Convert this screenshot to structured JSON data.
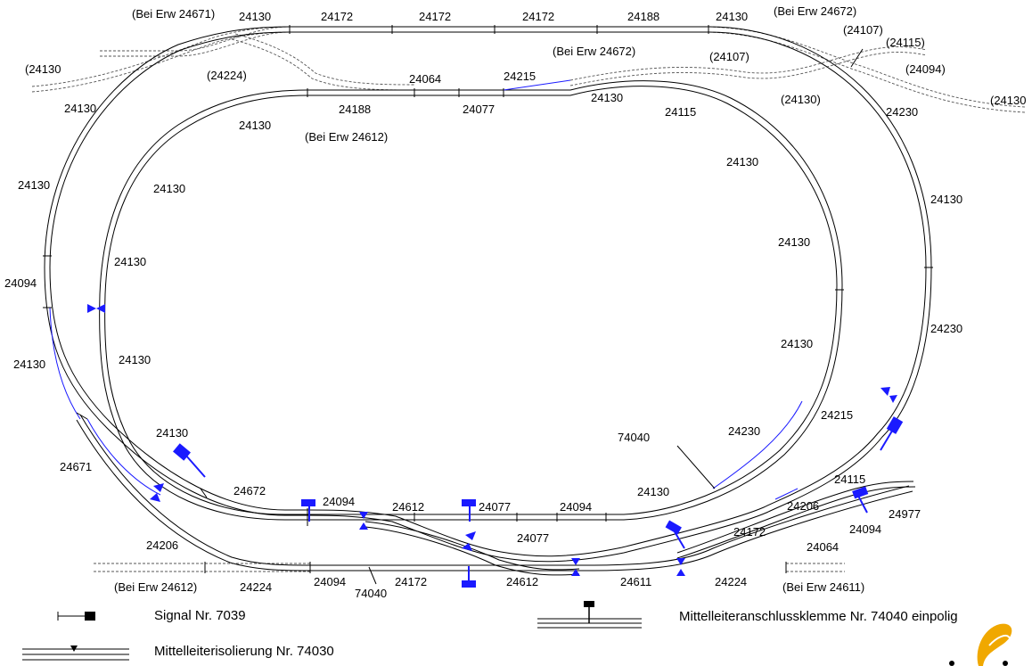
{
  "labels": {
    "bei_erw_24671": "(Bei Erw 24671)",
    "bei_erw_24672_top": "(Bei Erw 24672)",
    "bei_erw_24672_mid": "(Bei Erw 24672)",
    "bei_erw_24612_inner": "(Bei Erw 24612)",
    "bei_erw_24612_bottom": "(Bei Erw 24612)",
    "bei_erw_24611": "(Bei Erw 24611)",
    "top_a": "24130",
    "top_b": "24172",
    "top_c": "24172",
    "top_d": "24172",
    "top_e": "24188",
    "top_f": "24130",
    "ext_24130_left": "(24130",
    "ext_24107_a": "(24107)",
    "ext_24115": "(24115)",
    "ext_24107_b": "(24107)",
    "ext_24094": "(24094)",
    "ext_24130_right": "(24130",
    "ext_24224": "(24224)",
    "ext_24130_mid": "(24130)",
    "outer_24130_a": "24130",
    "outer_24130_b": "24130",
    "outer_24094": "24094",
    "outer_24130_c": "24130",
    "inner_24064": "24064",
    "inner_24215": "24215",
    "inner_24188": "24188",
    "inner_24077": "24077",
    "inner_24130_a": "24130",
    "inner_24130_b": "24130",
    "inner_24115": "24115",
    "right_24230_a": "24230",
    "right_24130_a": "24130",
    "right_24130_b": "24130",
    "right_24230_b": "24230",
    "inner_right_24130_a": "24130",
    "inner_right_24130_b": "24130",
    "inner_right_24130_c": "24130",
    "inner_left_24130_a": "24130",
    "inner_left_24130_b": "24130",
    "inner_left_24130_c": "24130",
    "inner_left_24130_d": "24130",
    "lower_24671": "24671",
    "lower_24672": "24672",
    "lower_24094_a": "24094",
    "lower_24612_a": "24612",
    "lower_24077_a": "24077",
    "lower_24094_b": "24094",
    "lower_24130": "24130",
    "lower_24230": "24230",
    "lower_24215": "24215",
    "lower_74040": "74040",
    "lower_24077_b": "24077",
    "lower_24206_a": "24206",
    "lower_24115": "24115",
    "lower_24977": "24977",
    "lower_24172_a": "24172",
    "lower_24094_c": "24094",
    "lower_24206_b": "24206",
    "lower_24064": "24064",
    "bottom_24224_a": "24224",
    "bottom_24094": "24094",
    "bottom_74040": "74040",
    "bottom_24172": "24172",
    "bottom_24612": "24612",
    "bottom_24611": "24611",
    "bottom_24224_b": "24224"
  },
  "legend": {
    "signal": "Signal Nr. 7039",
    "isolation": "Mittelleiterisolierung Nr. 74030",
    "clamp": "Mittelleiteranschlussklemme Nr. 74040 einpolig"
  },
  "colors": {
    "track": "#000000",
    "isolated_track": "#1a1aff",
    "accent": "#0000cc",
    "dashed_track": "#555555",
    "logo": "#f0a800"
  }
}
